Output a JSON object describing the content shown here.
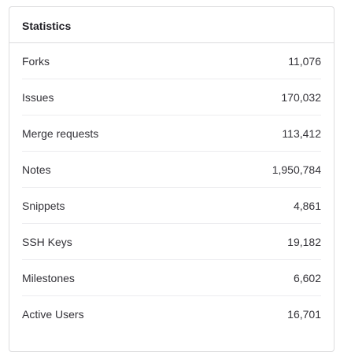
{
  "card": {
    "title": "Statistics"
  },
  "stats": [
    {
      "label": "Forks",
      "value": "11,076"
    },
    {
      "label": "Issues",
      "value": "170,032"
    },
    {
      "label": "Merge requests",
      "value": "113,412"
    },
    {
      "label": "Notes",
      "value": "1,950,784"
    },
    {
      "label": "Snippets",
      "value": "4,861"
    },
    {
      "label": "SSH Keys",
      "value": "19,182"
    },
    {
      "label": "Milestones",
      "value": "6,602"
    },
    {
      "label": "Active Users",
      "value": "16,701"
    }
  ]
}
